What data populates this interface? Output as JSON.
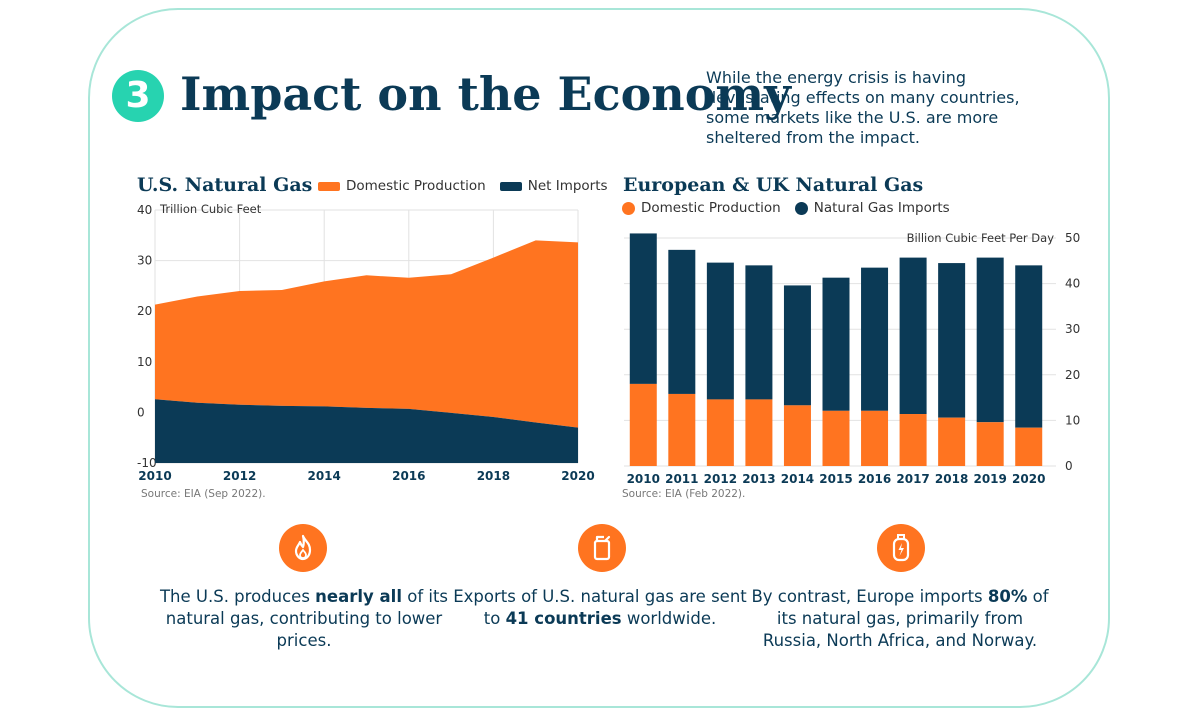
{
  "header": {
    "section_number": "3",
    "title": "Impact on the Economy",
    "subtitle": "While the energy crisis is having devastating effects on many countries, some markets like the U.S. are more sheltered from the impact."
  },
  "colors": {
    "orange": "#ff7420",
    "navy": "#0b3a56",
    "teal": "#27d3b0",
    "frame": "#a8e6d8"
  },
  "chart_data": [
    {
      "type": "area",
      "title": "U.S. Natural Gas",
      "unit_label": "Trillion Cubic Feet",
      "x": [
        2010,
        2011,
        2012,
        2013,
        2014,
        2015,
        2016,
        2017,
        2018,
        2019,
        2020
      ],
      "x_ticks": [
        "2010",
        "2012",
        "2014",
        "2016",
        "2018",
        "2020"
      ],
      "y_ticks": [
        "40",
        "30",
        "20",
        "10",
        "0",
        "-10"
      ],
      "ylim": [
        -10,
        40
      ],
      "series": [
        {
          "name": "Domestic Production",
          "color": "#ff7420",
          "values": [
            21.3,
            22.9,
            24.0,
            24.2,
            25.9,
            27.1,
            26.6,
            27.3,
            30.6,
            34.0,
            33.6
          ]
        },
        {
          "name": "Net Imports",
          "color": "#0b3a56",
          "values": [
            2.6,
            1.9,
            1.5,
            1.3,
            1.2,
            0.9,
            0.7,
            -0.1,
            -0.9,
            -2.0,
            -3.0
          ]
        }
      ],
      "source": "Source: EIA (Sep 2022)."
    },
    {
      "type": "bar",
      "title": "European & UK Natural Gas",
      "unit_label": "Billion Cubic Feet Per Day",
      "categories": [
        "2010",
        "2011",
        "2012",
        "2013",
        "2014",
        "2015",
        "2016",
        "2017",
        "2018",
        "2019",
        "2020"
      ],
      "y_ticks": [
        "50",
        "40",
        "30",
        "20",
        "10",
        "0"
      ],
      "ylim": [
        0,
        50
      ],
      "series": [
        {
          "name": "Domestic Production",
          "color": "#ff7420",
          "values": [
            18.0,
            15.8,
            14.6,
            14.6,
            13.3,
            12.1,
            12.1,
            11.4,
            10.6,
            9.6,
            8.4
          ]
        },
        {
          "name": "Natural Gas Imports",
          "color": "#0b3a56",
          "values": [
            33.0,
            31.6,
            30.0,
            29.4,
            26.3,
            29.2,
            31.4,
            34.3,
            33.9,
            36.1,
            35.6
          ]
        }
      ],
      "source": "Source: EIA (Feb 2022)."
    }
  ],
  "stats": [
    {
      "icon": "flame-icon",
      "pre": "The U.S. produces ",
      "bold": "nearly all",
      "post": " of its natural gas, contributing to lower prices."
    },
    {
      "icon": "gas-can-icon",
      "pre": "Exports of U.S. natural gas are sent to ",
      "bold": "41 countries",
      "post": " worldwide."
    },
    {
      "icon": "gas-cylinder-icon",
      "pre": "By contrast, Europe imports ",
      "bold": "80%",
      "post": " of its natural gas, primarily from Russia, North Africa, and Norway."
    }
  ]
}
